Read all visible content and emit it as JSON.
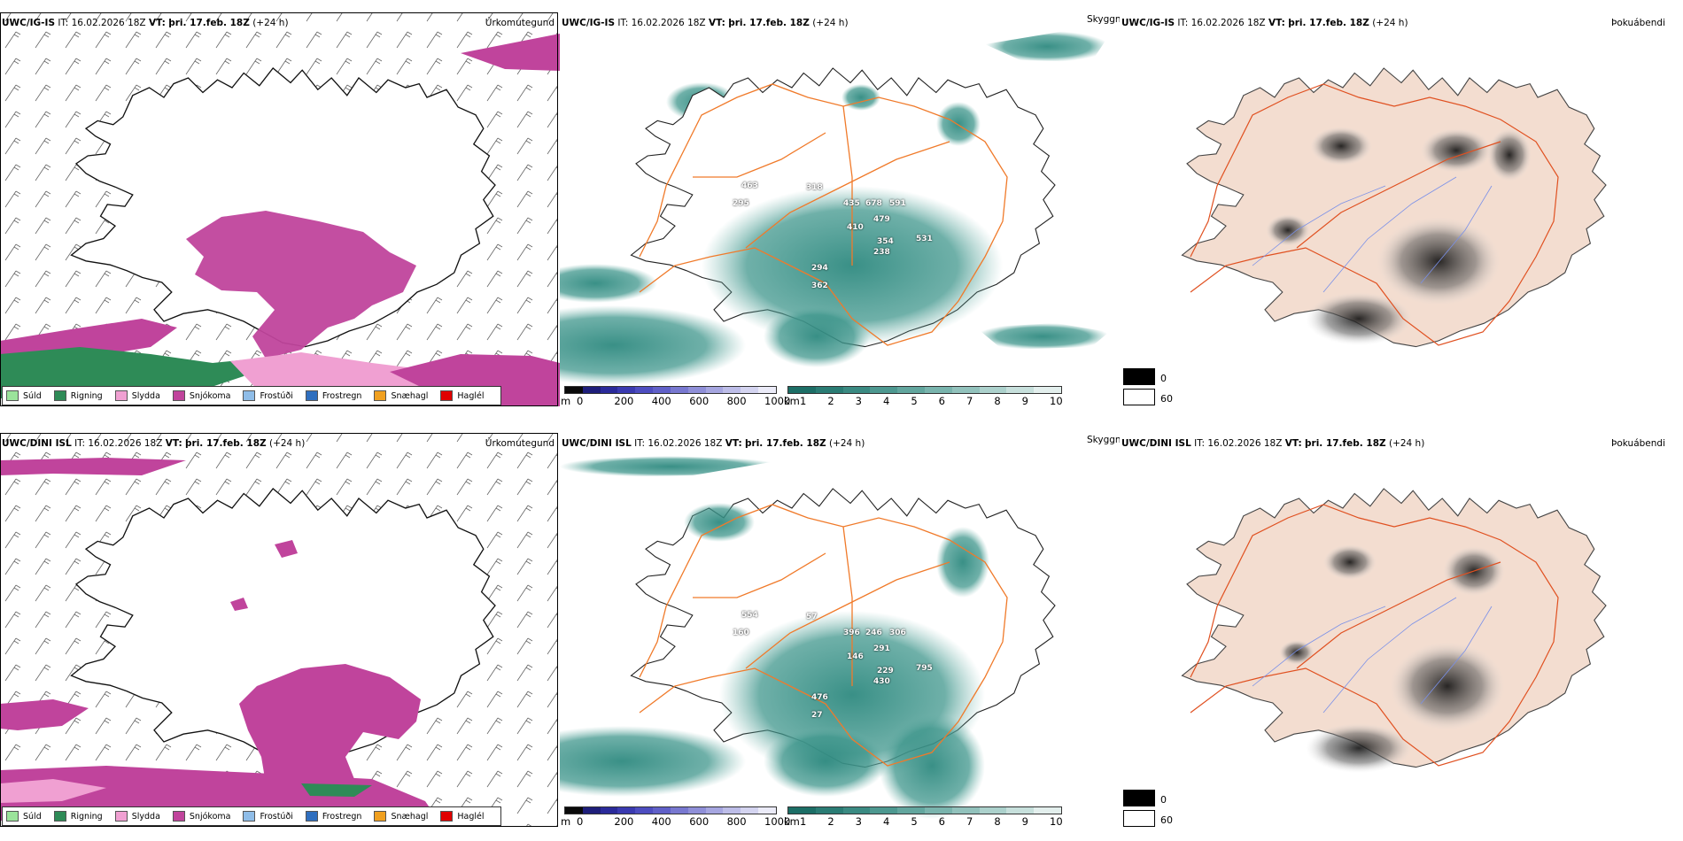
{
  "panels": [
    {
      "source": "UWC/IG-IS",
      "it_label": "IT:",
      "it": "16.02.2026 18Z",
      "vt_label": "VT:",
      "vt": "þri. 17.feb. 18Z",
      "lead": "(+24 h)"
    },
    {
      "source": "UWC/DINI ISL",
      "it_label": "IT:",
      "it": "16.02.2026 18Z",
      "vt_label": "VT:",
      "vt": "þri. 17.feb. 18Z",
      "lead": "(+24 h)"
    }
  ],
  "titles": {
    "precip": "Úrkomutegund",
    "cloud": "Skyggni",
    "fog": "Þokuábendi"
  },
  "precip_legend": [
    {
      "label": "Súld",
      "color": "#9be39b"
    },
    {
      "label": "Rigning",
      "color": "#2e8b57"
    },
    {
      "label": "Slydda",
      "color": "#f0a0d2"
    },
    {
      "label": "Snjókoma",
      "color": "#c0449c"
    },
    {
      "label": "Frostúði",
      "color": "#8fbde8"
    },
    {
      "label": "Frostregn",
      "color": "#2f6fbf"
    },
    {
      "label": "Snæhagl",
      "color": "#f0a020"
    },
    {
      "label": "Haglél",
      "color": "#e00000"
    }
  ],
  "height_scale": {
    "unit": "m",
    "ticks": [
      "0",
      "200",
      "400",
      "600",
      "800",
      "1000"
    ],
    "colors": [
      "#0a0a0a",
      "#1e1e7a",
      "#2a2a9a",
      "#3a3ab0",
      "#4d4dc0",
      "#6060c8",
      "#7878d0",
      "#8f8fd8",
      "#a6a6e0",
      "#bdbde8",
      "#d4d4f0",
      "#ebebf8"
    ]
  },
  "cloud_scale": {
    "unit": "km",
    "ticks": [
      "1",
      "2",
      "3",
      "4",
      "5",
      "6",
      "7",
      "8",
      "9",
      "10"
    ],
    "colors": [
      "#1c6e66",
      "#2a7c74",
      "#3a8a82",
      "#4d9890",
      "#62a69e",
      "#79b4ad",
      "#92c2bc",
      "#acd1cc",
      "#c7e0dc",
      "#e3efed"
    ]
  },
  "fog_legend": [
    {
      "label": "0",
      "color": "#000000"
    },
    {
      "label": "60",
      "color": "#ffffff"
    }
  ],
  "cloud_values": [
    [
      "463",
      "318",
      "295",
      "435",
      "678",
      "591",
      "479",
      "410",
      "354",
      "238",
      "531",
      "294",
      "362"
    ],
    [
      "554",
      "57",
      "160",
      "396",
      "246",
      "306",
      "291",
      "146",
      "229",
      "430",
      "795",
      "476",
      "27"
    ]
  ],
  "colors": {
    "snow": "#c0449c",
    "rain": "#2e8b57",
    "sleet": "#f0a0d2",
    "roads": "#f07a2a",
    "cloud_teal": "#2f8a80",
    "land_fog": "#f3ddd0"
  }
}
